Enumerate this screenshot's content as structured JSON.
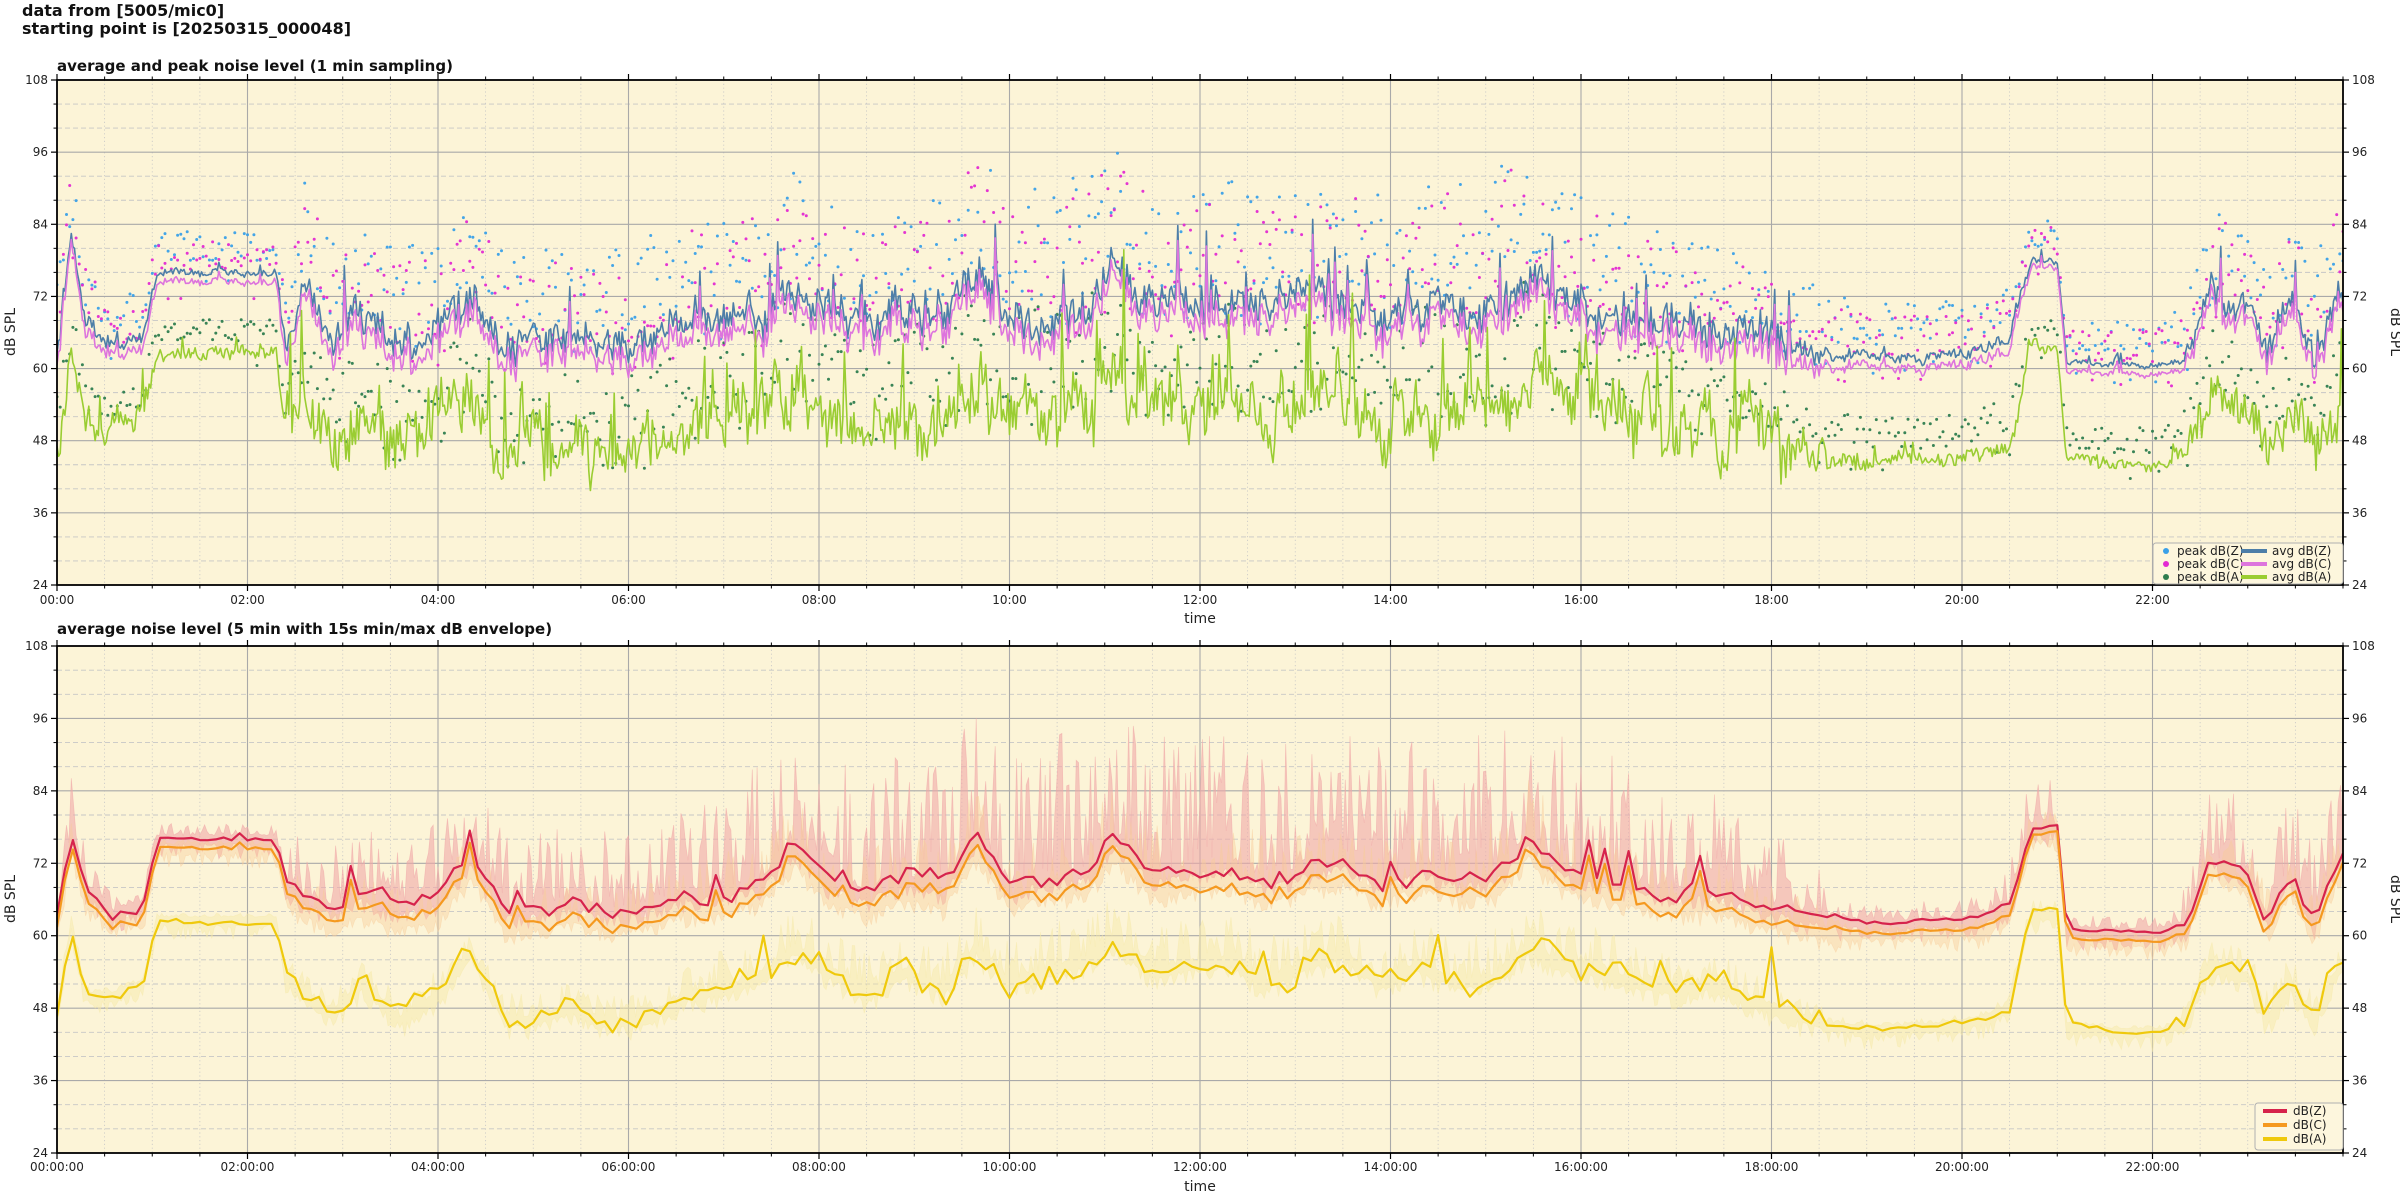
{
  "meta": {
    "header_line1": "data from [5005/mic0]",
    "header_line2": "starting point is [20250315_000048]"
  },
  "palette": {
    "figure_bg": "#ffffff",
    "plot_bg": "#fcf4d7",
    "grid_major": "#a9a9a9",
    "grid_minor": "#c6c6c6",
    "spine": "#000000",
    "legend_bg": "#fdf6dd",
    "legend_border": "#b0b0b0"
  },
  "chart_data": [
    {
      "type": "line+scatter",
      "title": "average and peak noise level (1 min sampling)",
      "xlabel": "time",
      "ylabel": "dB SPL",
      "ylim": [
        24,
        108
      ],
      "xlim_hours": [
        0,
        24
      ],
      "yticks_db": [
        24,
        36,
        48,
        60,
        72,
        84,
        96,
        108
      ],
      "ytick_minor_step_db": 4,
      "xtick_hours": [
        0,
        2,
        4,
        6,
        8,
        10,
        12,
        14,
        16,
        18,
        20,
        22
      ],
      "xtick_labels": [
        "00:00",
        "02:00",
        "04:00",
        "06:00",
        "08:00",
        "10:00",
        "12:00",
        "14:00",
        "16:00",
        "18:00",
        "20:00",
        "22:00"
      ],
      "xminor_step_hours": 0.5,
      "sampling_minutes": 1,
      "keyframe_hours": [
        0,
        0.15,
        0.3,
        0.6,
        0.9,
        1.05,
        1.7,
        2.3,
        2.4,
        2.6,
        2.9,
        3.2,
        3.6,
        4.0,
        4.35,
        4.7,
        5.0,
        5.4,
        5.8,
        6.2,
        6.6,
        7.0,
        7.4,
        7.75,
        8.1,
        8.5,
        8.9,
        9.3,
        9.65,
        10.0,
        10.4,
        10.8,
        11.1,
        11.5,
        11.9,
        12.3,
        12.7,
        13.1,
        13.5,
        13.9,
        14.3,
        14.7,
        15.1,
        15.45,
        15.8,
        16.2,
        16.6,
        17.0,
        17.4,
        17.8,
        18.2,
        18.6,
        19.0,
        19.4,
        19.8,
        20.2,
        20.5,
        20.72,
        21.0,
        21.1,
        21.6,
        22.1,
        22.35,
        22.6,
        23.0,
        23.2,
        23.45,
        23.7,
        23.85,
        24.0
      ],
      "noise_amp": {
        "hours": [
          0,
          0.4,
          0.95,
          1.1,
          2.25,
          2.45,
          3.0,
          6.5,
          7.0,
          18.0,
          18.5,
          19.0,
          20.3,
          20.6,
          20.75,
          20.95,
          21.15,
          22.2,
          22.5,
          24.0
        ],
        "amp_db": [
          2.2,
          1.5,
          1.5,
          0.7,
          0.7,
          3.0,
          3.2,
          3.2,
          3.6,
          3.6,
          1.5,
          0.9,
          0.9,
          1.8,
          0.7,
          0.7,
          0.6,
          0.6,
          2.6,
          3.0
        ]
      },
      "series": [
        {
          "name": "avg dB(Z)",
          "color": "#4d7ea8",
          "line_width": 1.6,
          "noise_scale": 1.0,
          "seed": 101,
          "values_db": [
            62.5,
            84,
            68,
            63.5,
            65,
            76,
            76,
            76,
            64,
            75,
            66,
            67,
            64.5,
            66,
            73,
            64,
            64.5,
            65.5,
            64,
            65,
            67,
            67.5,
            69,
            75,
            69,
            67,
            69.5,
            68,
            76,
            68,
            70,
            70.5,
            76,
            70,
            71,
            72,
            69,
            71,
            72.5,
            69,
            71.5,
            69.5,
            70,
            76,
            71,
            70,
            68,
            67,
            67.5,
            65.5,
            64,
            62.5,
            62,
            62,
            62.3,
            62.8,
            65,
            78,
            78,
            61,
            60.5,
            60.5,
            62,
            73,
            70,
            63,
            70,
            62,
            70,
            73
          ]
        },
        {
          "name": "avg dB(C)",
          "color": "#dd74dd",
          "line_width": 1.6,
          "noise_scale": 1.0,
          "seed": 101,
          "values_db": [
            60.5,
            83,
            66,
            62,
            63,
            74.5,
            74.5,
            74.5,
            61.5,
            73.5,
            63.5,
            64.5,
            62,
            63.5,
            71,
            61.5,
            62,
            63,
            61.5,
            62.5,
            64.5,
            65,
            66.5,
            73,
            66.5,
            64.5,
            67,
            65.5,
            74,
            65.5,
            67.5,
            68,
            74,
            67.5,
            68.5,
            69.5,
            66.5,
            68.5,
            70,
            66.5,
            69,
            67,
            67.5,
            74,
            68.5,
            67.5,
            65.5,
            64.5,
            65,
            63,
            61.5,
            60.5,
            60.3,
            60.3,
            60.5,
            61,
            63,
            77,
            77,
            59.5,
            59,
            59,
            60.5,
            71,
            68,
            61,
            68,
            60,
            68,
            71.5
          ]
        },
        {
          "name": "avg dB(A)",
          "color": "#9acd32",
          "line_width": 1.6,
          "noise_scale": 1.6,
          "seed": 202,
          "values_db": [
            46,
            62,
            50,
            50,
            52,
            62.5,
            62.5,
            62.5,
            50,
            56,
            48,
            52,
            46,
            50,
            57,
            46,
            46,
            48,
            45.5,
            46,
            50,
            51,
            53,
            58,
            54,
            50,
            54,
            51,
            58,
            52,
            54,
            56,
            59,
            54,
            55,
            56,
            52,
            55,
            57,
            52,
            55,
            52,
            53,
            58,
            55,
            54,
            52,
            51,
            52,
            49,
            47,
            45,
            44.5,
            44.5,
            45,
            46,
            48,
            63.5,
            63.5,
            45,
            44,
            44,
            46,
            55,
            53,
            46,
            52,
            45.5,
            52,
            55
          ]
        }
      ],
      "peak_amp": {
        "hours": [
          0,
          0.5,
          1.1,
          2.25,
          2.6,
          5.0,
          7.0,
          9.0,
          9.65,
          11.0,
          13.0,
          15.3,
          16.0,
          17.0,
          18.5,
          19.0,
          20.4,
          20.75,
          21.1,
          22.2,
          22.6,
          24.0
        ],
        "amp_db": [
          10,
          8,
          5,
          5,
          14,
          13,
          17,
          17,
          21,
          19,
          17,
          21,
          17,
          14,
          9,
          7,
          7,
          5,
          5,
          6,
          13,
          14
        ]
      },
      "peak_series": [
        {
          "name": "peak dB(Z)",
          "color": "#3aa0e8",
          "seed": 601,
          "base_series": 0,
          "amp_scale": 1.0
        },
        {
          "name": "peak dB(C)",
          "color": "#e32ad2",
          "seed": 602,
          "base_series": 1,
          "amp_scale": 1.0
        },
        {
          "name": "peak dB(A)",
          "color": "#2e7d4f",
          "seed": 603,
          "base_series": 2,
          "amp_scale": 0.75
        }
      ],
      "legend": {
        "ncol": 2,
        "entries": [
          {
            "label": "peak dB(Z)",
            "marker": "dot",
            "color": "#3aa0e8"
          },
          {
            "label": "peak dB(C)",
            "marker": "dot",
            "color": "#e32ad2"
          },
          {
            "label": "peak dB(A)",
            "marker": "dot",
            "color": "#2e7d4f"
          },
          {
            "label": "avg dB(Z)",
            "marker": "line",
            "color": "#4d7ea8"
          },
          {
            "label": "avg dB(C)",
            "marker": "line",
            "color": "#dd74dd"
          },
          {
            "label": "avg dB(A)",
            "marker": "line",
            "color": "#9acd32"
          }
        ]
      }
    },
    {
      "type": "line+envelope",
      "title": "average noise level (5 min with 15s min/max dB envelope)",
      "xlabel": "time",
      "ylabel": "dB SPL",
      "ylim": [
        24,
        108
      ],
      "xlim_hours": [
        0,
        24
      ],
      "yticks_db": [
        24,
        36,
        48,
        60,
        72,
        84,
        96,
        108
      ],
      "ytick_minor_step_db": 4,
      "xtick_hours": [
        0,
        2,
        4,
        6,
        8,
        10,
        12,
        14,
        16,
        18,
        20,
        22
      ],
      "xtick_labels": [
        "00:00:00",
        "02:00:00",
        "04:00:00",
        "06:00:00",
        "08:00:00",
        "10:00:00",
        "12:00:00",
        "14:00:00",
        "16:00:00",
        "18:00:00",
        "20:00:00",
        "22:00:00"
      ],
      "xminor_step_hours": 0.5,
      "sampling_minutes": 5,
      "keyframe_hours": [
        0,
        0.15,
        0.3,
        0.6,
        0.9,
        1.05,
        1.7,
        2.3,
        2.4,
        2.6,
        2.9,
        3.2,
        3.6,
        4.0,
        4.35,
        4.7,
        5.0,
        5.4,
        5.8,
        6.2,
        6.6,
        7.0,
        7.4,
        7.75,
        8.1,
        8.5,
        8.9,
        9.3,
        9.65,
        10.0,
        10.4,
        10.8,
        11.1,
        11.5,
        11.9,
        12.3,
        12.7,
        13.1,
        13.5,
        13.9,
        14.3,
        14.7,
        15.1,
        15.45,
        15.8,
        16.2,
        16.6,
        17.0,
        17.4,
        17.8,
        18.2,
        18.6,
        19.0,
        19.4,
        19.8,
        20.2,
        20.5,
        20.72,
        21.0,
        21.1,
        21.6,
        22.1,
        22.35,
        22.6,
        23.0,
        23.2,
        23.45,
        23.7,
        23.85,
        24.0
      ],
      "noise_amp": {
        "hours": [
          0,
          0.4,
          0.95,
          1.1,
          2.25,
          2.45,
          3.0,
          6.5,
          7.0,
          18.0,
          18.5,
          19.0,
          20.3,
          20.6,
          20.75,
          20.95,
          21.15,
          22.2,
          22.5,
          24.0
        ],
        "amp_db": [
          2.2,
          1.5,
          1.5,
          0.7,
          0.7,
          3.0,
          3.2,
          3.2,
          3.6,
          3.6,
          1.5,
          0.9,
          0.9,
          1.8,
          0.7,
          0.7,
          0.6,
          0.6,
          2.6,
          3.0
        ]
      },
      "envelope": {
        "window_seconds": 15,
        "hours": [
          0,
          0.15,
          0.45,
          1.05,
          2.3,
          2.5,
          4.0,
          6.5,
          7.0,
          9.0,
          11.0,
          13.0,
          15.0,
          15.6,
          16.5,
          17.5,
          18.4,
          18.8,
          20.3,
          20.55,
          20.75,
          21.0,
          21.15,
          22.2,
          22.45,
          23.0,
          23.5,
          24.0
        ],
        "amp_db": [
          7,
          11,
          3,
          2,
          2,
          10,
          12,
          13,
          20,
          21,
          24,
          22,
          24,
          26,
          19,
          15,
          10,
          3,
          3,
          7,
          9,
          7,
          2,
          2,
          10,
          15,
          13,
          13
        ]
      },
      "series": [
        {
          "name": "dB(Z)",
          "color": "#d6234c",
          "line_width": 2.2,
          "noise_scale": 0.5,
          "seed": 303,
          "envelope_scale": 1.0,
          "envelope_color": "#f0a8a8",
          "envelope_opacity": 0.6,
          "eseed": 505,
          "values_db": [
            62.5,
            77,
            68,
            63.5,
            65,
            76,
            76,
            76,
            69,
            66,
            64.5,
            67,
            64.5,
            66,
            73,
            64,
            64.5,
            65.5,
            64,
            65,
            67,
            67.5,
            69,
            75,
            69,
            67,
            69.5,
            68,
            76,
            68,
            70,
            70.5,
            76,
            70,
            71,
            72,
            69,
            71,
            72.5,
            69,
            71.5,
            69.5,
            70,
            76,
            71,
            70,
            68,
            67,
            67.5,
            65.5,
            64,
            62.5,
            62,
            62,
            62.3,
            62.8,
            65,
            78,
            78,
            61,
            60.5,
            60.5,
            62,
            73,
            70,
            63,
            70,
            62,
            70,
            73
          ]
        },
        {
          "name": "dB(C)",
          "color": "#f5991f",
          "line_width": 2.2,
          "noise_scale": 0.5,
          "seed": 303,
          "envelope_scale": 0.45,
          "envelope_color": "#f8cc9c",
          "envelope_opacity": 0.42,
          "eseed": 506,
          "values_db": [
            60.5,
            75.5,
            66,
            62,
            63,
            74.5,
            74.5,
            74.5,
            67,
            64,
            62.5,
            64.5,
            62,
            63.5,
            71,
            61.5,
            62,
            63,
            61.5,
            62.5,
            64.5,
            65,
            66.5,
            73,
            66.5,
            64.5,
            67,
            65.5,
            74,
            65.5,
            67.5,
            68,
            74,
            67.5,
            68.5,
            69.5,
            66.5,
            68.5,
            70,
            66.5,
            69,
            67,
            67.5,
            74,
            68.5,
            67.5,
            65.5,
            64.5,
            65,
            63,
            61.5,
            60.5,
            60.3,
            60.3,
            60.5,
            61,
            63,
            77,
            77,
            59.5,
            59,
            59,
            60.5,
            71,
            68,
            61,
            68,
            60,
            68,
            71.5
          ]
        },
        {
          "name": "dB(A)",
          "color": "#efc90c",
          "line_width": 2.2,
          "noise_scale": 0.7,
          "seed": 404,
          "envelope_scale": 0.32,
          "envelope_color": "#f7e8a6",
          "envelope_opacity": 0.45,
          "eseed": 507,
          "values_db": [
            46,
            62,
            50,
            50,
            52,
            62.5,
            62.5,
            62.5,
            53,
            50,
            47,
            52,
            46,
            50,
            57,
            46,
            46,
            48,
            45.5,
            46,
            50,
            51,
            53,
            58,
            54,
            50,
            54,
            51,
            58,
            52,
            54,
            56,
            59,
            54,
            55,
            56,
            52,
            55,
            57,
            52,
            55,
            52,
            53,
            58,
            55,
            54,
            52,
            51,
            52,
            49,
            47,
            45,
            44.5,
            44.5,
            45,
            46,
            48,
            63.5,
            63.5,
            45,
            44,
            44,
            46,
            55,
            53,
            46,
            52,
            45.5,
            52,
            55
          ]
        }
      ],
      "legend": {
        "ncol": 1,
        "entries": [
          {
            "label": "dB(Z)",
            "marker": "line",
            "color": "#d6234c"
          },
          {
            "label": "dB(C)",
            "marker": "line",
            "color": "#f5991f"
          },
          {
            "label": "dB(A)",
            "marker": "line",
            "color": "#efc90c"
          }
        ]
      }
    }
  ]
}
